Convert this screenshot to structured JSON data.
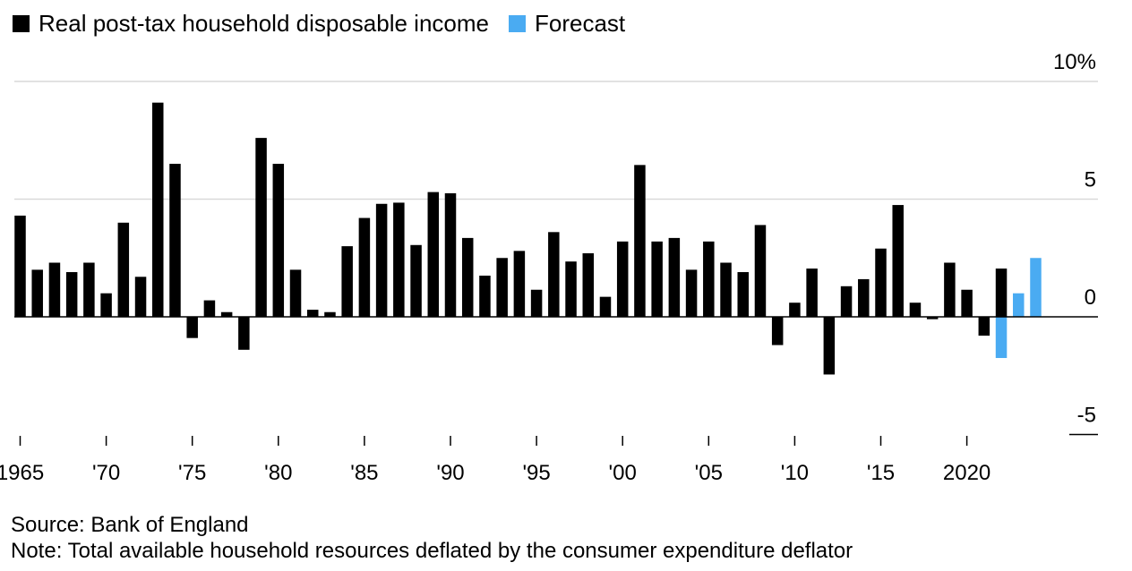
{
  "legend": [
    {
      "label": "Real post-tax household disposable income",
      "color": "#000000"
    },
    {
      "label": "Forecast",
      "color": "#4aabf2"
    }
  ],
  "footer": {
    "source": "Source: Bank of England",
    "note": "Note: Total available household resources deflated by the consumer expenditure deflator"
  },
  "chart_data": {
    "type": "bar",
    "title": "",
    "xlabel": "",
    "ylabel": "",
    "ylim": [
      -5,
      10
    ],
    "yticks": [
      10,
      5,
      0,
      -5
    ],
    "ytick_labels": [
      "10%",
      "5",
      "0",
      "-5"
    ],
    "categories": [
      1965,
      1966,
      1967,
      1968,
      1969,
      1970,
      1971,
      1972,
      1973,
      1974,
      1975,
      1976,
      1977,
      1978,
      1979,
      1980,
      1981,
      1982,
      1983,
      1984,
      1985,
      1986,
      1987,
      1988,
      1989,
      1990,
      1991,
      1992,
      1993,
      1994,
      1995,
      1996,
      1997,
      1998,
      1999,
      2000,
      2001,
      2002,
      2003,
      2004,
      2005,
      2006,
      2007,
      2008,
      2009,
      2010,
      2011,
      2012,
      2013,
      2014,
      2015,
      2016,
      2017,
      2018,
      2019,
      2020,
      2021,
      2022,
      2023,
      2024
    ],
    "xtick_labels": [
      {
        "year": 1965,
        "label": "1965"
      },
      {
        "year": 1970,
        "label": "'70"
      },
      {
        "year": 1975,
        "label": "'75"
      },
      {
        "year": 1980,
        "label": "'80"
      },
      {
        "year": 1985,
        "label": "'85"
      },
      {
        "year": 1990,
        "label": "'90"
      },
      {
        "year": 1995,
        "label": "'95"
      },
      {
        "year": 2000,
        "label": "'00"
      },
      {
        "year": 2005,
        "label": "'05"
      },
      {
        "year": 2010,
        "label": "'10"
      },
      {
        "year": 2015,
        "label": "'15"
      },
      {
        "year": 2020,
        "label": "2020"
      }
    ],
    "series": [
      {
        "name": "Real post-tax household disposable income",
        "color": "#000000",
        "values": [
          4.3,
          2.0,
          2.3,
          1.9,
          2.3,
          1.0,
          4.0,
          1.7,
          9.1,
          6.5,
          -0.9,
          0.7,
          0.2,
          -1.4,
          7.6,
          6.5,
          2.0,
          0.3,
          0.2,
          3.0,
          4.2,
          4.8,
          4.85,
          3.05,
          5.3,
          5.25,
          3.35,
          1.75,
          2.5,
          2.8,
          1.15,
          3.6,
          2.35,
          2.7,
          0.85,
          3.2,
          6.45,
          3.2,
          3.35,
          2.0,
          3.2,
          2.3,
          1.9,
          3.9,
          -1.2,
          0.6,
          2.05,
          -2.45,
          1.3,
          1.6,
          2.9,
          4.75,
          0.6,
          -0.1,
          2.3,
          1.15,
          -0.8,
          2.05,
          null,
          null
        ]
      },
      {
        "name": "Forecast",
        "color": "#4aabf2",
        "values": [
          null,
          null,
          null,
          null,
          null,
          null,
          null,
          null,
          null,
          null,
          null,
          null,
          null,
          null,
          null,
          null,
          null,
          null,
          null,
          null,
          null,
          null,
          null,
          null,
          null,
          null,
          null,
          null,
          null,
          null,
          null,
          null,
          null,
          null,
          null,
          null,
          null,
          null,
          null,
          null,
          null,
          null,
          null,
          null,
          null,
          null,
          null,
          null,
          null,
          null,
          null,
          null,
          null,
          null,
          null,
          null,
          null,
          -1.75,
          1.0,
          2.5
        ]
      }
    ]
  }
}
